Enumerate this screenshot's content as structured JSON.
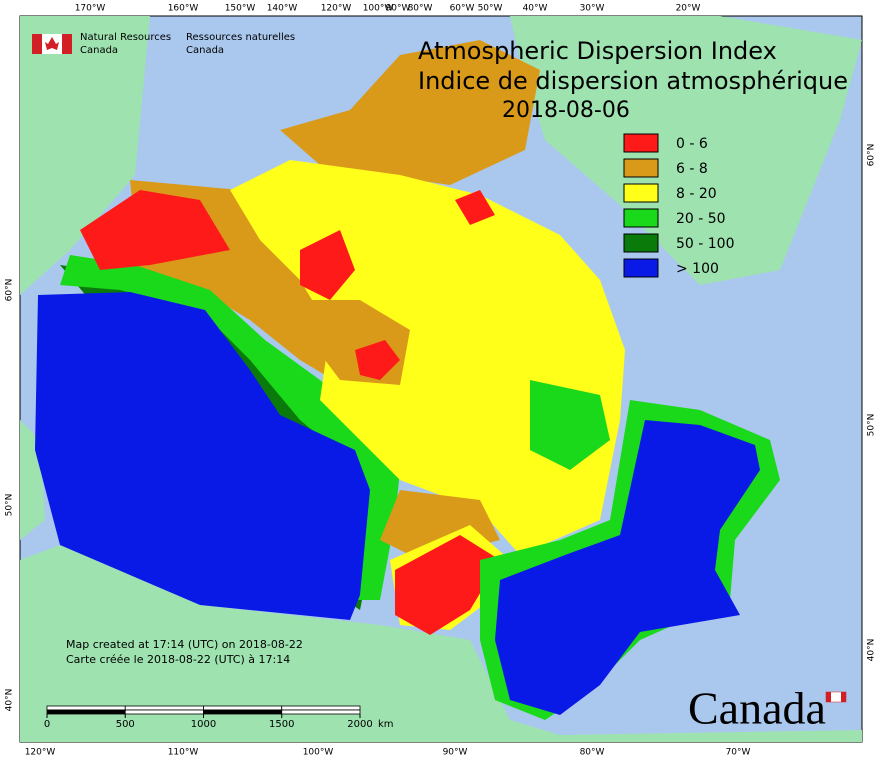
{
  "header": {
    "en_line1": "Natural Resources",
    "en_line2": "Canada",
    "fr_line1": "Ressources naturelles",
    "fr_line2": "Canada"
  },
  "title": {
    "line1": "Atmospheric Dispersion Index",
    "line2": "Indice de dispersion atmosphérique",
    "date": "2018-08-06"
  },
  "legend": [
    {
      "label": "0 - 6",
      "color": "#ff1a1a"
    },
    {
      "label": "6 - 8",
      "color": "#d99a1a"
    },
    {
      "label": "8 - 20",
      "color": "#ffff1a"
    },
    {
      "label": "20 - 50",
      "color": "#1ad91a"
    },
    {
      "label": "50 - 100",
      "color": "#0a7a0a"
    },
    {
      "label": "> 100",
      "color": "#0a1ae6"
    }
  ],
  "graticule": {
    "top": [
      "170°W",
      "160°W",
      "150°W",
      "140°W",
      "120°W",
      "100°W",
      "90°W",
      "80°W",
      "60°W",
      "50°W",
      "40°W",
      "30°W",
      "20°W"
    ],
    "bottom": [
      "120°W",
      "110°W",
      "100°W",
      "90°W",
      "80°W",
      "70°W"
    ],
    "left": [
      "60°N",
      "50°N",
      "40°N"
    ],
    "right": [
      "60°N",
      "50°N",
      "40°N"
    ]
  },
  "notes": [
    "Map created at 17:14 (UTC) on 2018-08-22",
    "Carte créée le 2018-08-22 (UTC) à 17:14"
  ],
  "scale_bar": {
    "ticks": [
      0,
      500,
      1000,
      1500,
      2000
    ],
    "unit": "km"
  },
  "wordmark": "Canada"
}
